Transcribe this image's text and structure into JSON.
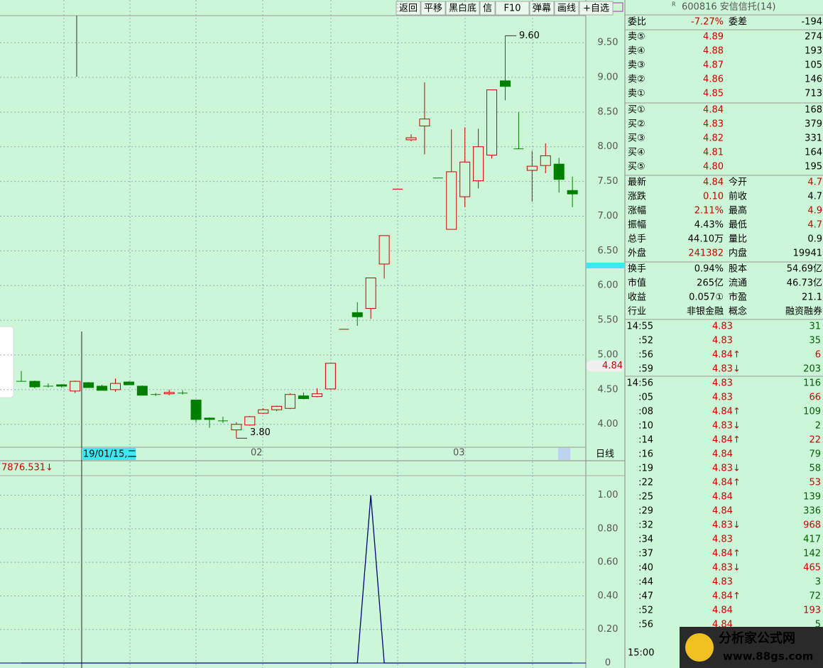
{
  "toolbar": {
    "buttons": [
      "返回",
      "平移",
      "黑白底",
      "信",
      "F10",
      "弹幕",
      "画线",
      "+自选"
    ]
  },
  "kline": {
    "ylim": [
      3.67,
      9.89
    ],
    "yticks": [
      {
        "value": 4,
        "label": "4.00"
      },
      {
        "value": 4.5,
        "label": "4.50"
      },
      {
        "value": 5,
        "label": "5.00"
      },
      {
        "value": 5.5,
        "label": "5.50"
      },
      {
        "value": 6,
        "label": "6.00"
      },
      {
        "value": 6.5,
        "label": "6.50"
      },
      {
        "value": 7,
        "label": "7.00"
      },
      {
        "value": 7.5,
        "label": "7.50"
      },
      {
        "value": 8,
        "label": "8.00"
      },
      {
        "value": 8.5,
        "label": "8.50"
      },
      {
        "value": 9,
        "label": "9.00"
      },
      {
        "value": 9.5,
        "label": "9.50"
      }
    ],
    "candles": [
      {
        "o": 4.63,
        "h": 4.77,
        "l": 4.62,
        "c": 4.62
      },
      {
        "o": 4.62,
        "h": 4.63,
        "l": 4.52,
        "c": 4.54
      },
      {
        "o": 4.56,
        "h": 4.59,
        "l": 4.53,
        "c": 4.55
      },
      {
        "o": 4.57,
        "h": 4.58,
        "l": 4.53,
        "c": 4.55
      },
      {
        "o": 4.48,
        "h": 4.63,
        "l": 4.45,
        "c": 4.62
      },
      {
        "o": 4.6,
        "h": 4.61,
        "l": 4.53,
        "c": 4.53
      },
      {
        "o": 4.55,
        "h": 4.57,
        "l": 4.49,
        "c": 4.49
      },
      {
        "o": 4.5,
        "h": 4.66,
        "l": 4.47,
        "c": 4.59
      },
      {
        "o": 4.61,
        "h": 4.62,
        "l": 4.57,
        "c": 4.57
      },
      {
        "o": 4.55,
        "h": 4.56,
        "l": 4.42,
        "c": 4.42
      },
      {
        "o": 4.44,
        "h": 4.45,
        "l": 4.41,
        "c": 4.43
      },
      {
        "o": 4.44,
        "h": 4.5,
        "l": 4.42,
        "c": 4.46
      },
      {
        "o": 4.46,
        "h": 4.49,
        "l": 4.43,
        "c": 4.45
      },
      {
        "o": 4.35,
        "h": 4.35,
        "l": 4.03,
        "c": 4.07
      },
      {
        "o": 4.09,
        "h": 4.1,
        "l": 3.95,
        "c": 4.07
      },
      {
        "o": 4.05,
        "h": 4.11,
        "l": 4.02,
        "c": 4.05
      },
      {
        "o": 3.92,
        "h": 4.03,
        "l": 3.8,
        "c": 4
      },
      {
        "o": 3.99,
        "h": 4.12,
        "l": 3.98,
        "c": 4.11
      },
      {
        "o": 4.16,
        "h": 4.23,
        "l": 4.15,
        "c": 4.21
      },
      {
        "o": 4.21,
        "h": 4.27,
        "l": 4.19,
        "c": 4.26
      },
      {
        "o": 4.23,
        "h": 4.45,
        "l": 4.22,
        "c": 4.43
      },
      {
        "o": 4.41,
        "h": 4.46,
        "l": 4.36,
        "c": 4.37
      },
      {
        "o": 4.4,
        "h": 4.52,
        "l": 4.39,
        "c": 4.44
      },
      {
        "o": 4.51,
        "h": 4.88,
        "l": 4.5,
        "c": 4.88
      },
      {
        "o": 5.37,
        "h": 5.37,
        "l": 5.37,
        "c": 5.37
      },
      {
        "o": 5.61,
        "h": 5.76,
        "l": 5.42,
        "c": 5.55
      },
      {
        "o": 5.67,
        "h": 6.11,
        "l": 5.52,
        "c": 6.11
      },
      {
        "o": 6.31,
        "h": 6.72,
        "l": 6.1,
        "c": 6.72
      },
      {
        "o": 7.39,
        "h": 7.39,
        "l": 7.39,
        "c": 7.39
      },
      {
        "o": 8.1,
        "h": 8.18,
        "l": 8.08,
        "c": 8.13
      },
      {
        "o": 8.3,
        "h": 8.93,
        "l": 7.89,
        "c": 8.4
      },
      {
        "o": 7.55,
        "h": 7.55,
        "l": 7.55,
        "c": 7.55
      },
      {
        "o": 6.81,
        "h": 8.25,
        "l": 6.81,
        "c": 7.64
      },
      {
        "o": 7.28,
        "h": 8.28,
        "l": 7.13,
        "c": 7.78
      },
      {
        "o": 7.51,
        "h": 8.26,
        "l": 7.4,
        "c": 8
      },
      {
        "o": 7.88,
        "h": 8.82,
        "l": 7.83,
        "c": 8.82
      },
      {
        "o": 8.95,
        "h": 9.6,
        "l": 8.67,
        "c": 8.87
      },
      {
        "o": 7.97,
        "h": 8.5,
        "l": 7.97,
        "c": 7.97
      },
      {
        "o": 7.66,
        "h": 7.94,
        "l": 7.21,
        "c": 7.72
      },
      {
        "o": 7.73,
        "h": 8.05,
        "l": 7.62,
        "c": 7.87
      },
      {
        "o": 7.75,
        "h": 7.84,
        "l": 7.34,
        "c": 7.53
      },
      {
        "o": 7.37,
        "h": 7.57,
        "l": 7.13,
        "c": 7.32
      }
    ],
    "annotations": [
      {
        "value": 9.6,
        "label": "9.60"
      },
      {
        "value": 3.8,
        "label": "3.80"
      }
    ],
    "last_price": {
      "value": 4.84,
      "label": "4.84"
    },
    "dates": [
      "19/01/15,二",
      "02",
      "03"
    ],
    "period": "日线"
  },
  "indicator": {
    "label": "7876.531↓",
    "ylim": [
      0,
      1.1
    ],
    "yticks": [
      0,
      {
        "value": 0.2,
        "label": "0.20"
      },
      {
        "value": 0.4,
        "label": "0.40"
      },
      {
        "value": 0.6,
        "label": "0.60"
      },
      {
        "value": 0.8,
        "label": "0.80"
      },
      {
        "value": 1,
        "label": "1.00"
      }
    ],
    "values": [
      0,
      0,
      0,
      0,
      0,
      0,
      0,
      0,
      0,
      0,
      0,
      0,
      0,
      0,
      0,
      0,
      0,
      0,
      0,
      0,
      0,
      0,
      0,
      0,
      0,
      0,
      1,
      0,
      0,
      0,
      0,
      0,
      0,
      0,
      0,
      0,
      0,
      0,
      0,
      0,
      0,
      0
    ]
  },
  "quote": {
    "marker": "R",
    "title": "600816 安信信托(14)",
    "ratio": [
      "委比",
      "-7.27%",
      "委差",
      "-194"
    ],
    "sells": [
      [
        "卖⑤",
        "4.89",
        "274"
      ],
      [
        "卖④",
        "4.88",
        "193"
      ],
      [
        "卖③",
        "4.87",
        "105"
      ],
      [
        "卖②",
        "4.86",
        "146"
      ],
      [
        "卖①",
        "4.85",
        "713"
      ]
    ],
    "buys": [
      [
        "买①",
        "4.84",
        "168"
      ],
      [
        "买②",
        "4.83",
        "379"
      ],
      [
        "买③",
        "4.82",
        "331"
      ],
      [
        "买④",
        "4.81",
        "164"
      ],
      [
        "买⑤",
        "4.80",
        "195"
      ]
    ],
    "stats": [
      [
        "最新",
        "4.84",
        "今开",
        "4.7"
      ],
      [
        "涨跌",
        "0.10",
        "前收",
        "4.7"
      ],
      [
        "涨幅",
        "2.11%",
        "最高",
        "4.9"
      ],
      [
        "振幅",
        "4.43%",
        "最低",
        "4.7"
      ],
      [
        "总手",
        "44.10万",
        "量比",
        "0.9"
      ],
      [
        "外盘",
        "241382",
        "内盘",
        "19941"
      ]
    ],
    "info": [
      [
        "换手",
        "0.94%",
        "股本",
        "54.69亿"
      ],
      [
        "市值",
        "265亿",
        "流通",
        "46.73亿"
      ],
      [
        "收益",
        "0.057①",
        "市盈",
        "21.1"
      ],
      [
        "行业",
        "非银金融",
        "概念",
        "融资融券"
      ]
    ],
    "ticks": [
      [
        "14:55",
        "4.83",
        "31"
      ],
      [
        ":52",
        "4.83",
        "35"
      ],
      [
        ":56",
        "4.84↑",
        "6"
      ],
      [
        ":59",
        "4.83↓",
        "203"
      ],
      [
        "14:56",
        "4.83",
        "116"
      ],
      [
        ":05",
        "4.83",
        "66"
      ],
      [
        ":08",
        "4.84↑",
        "109"
      ],
      [
        ":10",
        "4.83↓",
        "2"
      ],
      [
        ":14",
        "4.84↑",
        "22"
      ],
      [
        ":16",
        "4.84",
        "79"
      ],
      [
        ":19",
        "4.83↓",
        "58"
      ],
      [
        ":22",
        "4.84↑",
        "53"
      ],
      [
        ":25",
        "4.84",
        "139"
      ],
      [
        ":29",
        "4.84",
        "336"
      ],
      [
        ":32",
        "4.83↓",
        "968"
      ],
      [
        ":34",
        "4.83",
        "417"
      ],
      [
        ":37",
        "4.84↑",
        "142"
      ],
      [
        ":40",
        "4.83↓",
        "465"
      ],
      [
        ":44",
        "4.83",
        "3"
      ],
      [
        ":47",
        "4.84↑",
        "72"
      ],
      [
        ":52",
        "4.84",
        "193"
      ],
      [
        ":56",
        "4.84",
        "5"
      ]
    ],
    "close_time": "15:00"
  },
  "watermark": {
    "title": "分析家公式网",
    "url": "www.88gs.com"
  }
}
